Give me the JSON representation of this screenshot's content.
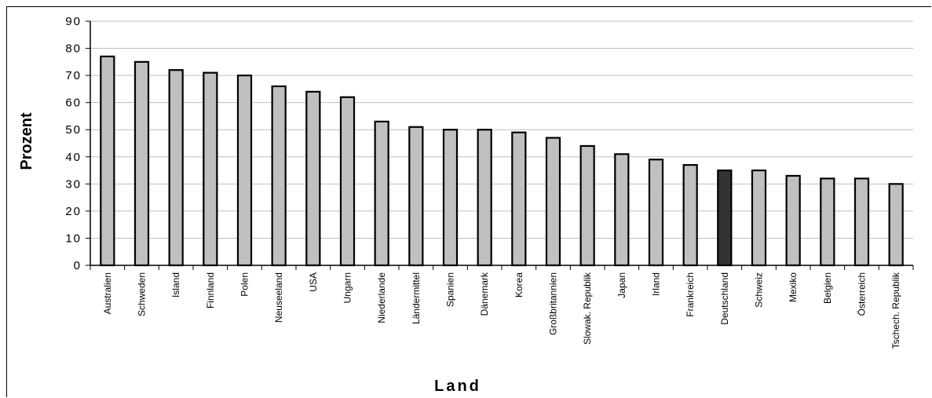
{
  "chart_data": {
    "type": "bar",
    "xlabel": "Land",
    "ylabel": "Prozent",
    "ylim": [
      0,
      90
    ],
    "yticks": [
      0,
      10,
      20,
      30,
      40,
      50,
      60,
      70,
      80,
      90
    ],
    "grid": true,
    "categories": [
      "Australien",
      "Schweden",
      "Island",
      "Finnland",
      "Polen",
      "Neuseeland",
      "USA",
      "Ungarn",
      "Niederlande",
      "Ländermittel",
      "Spanien",
      "Dänemark",
      "Korea",
      "Großbritannien",
      "Slowak. Republik",
      "Japan",
      "Irland",
      "Frankreich",
      "Deutschland",
      "Schweiz",
      "Mexiko",
      "Belgien",
      "Österreich",
      "Tschech. Republik"
    ],
    "values": [
      77,
      75,
      72,
      71,
      70,
      66,
      64,
      62,
      53,
      51,
      50,
      50,
      49,
      47,
      44,
      41,
      39,
      37,
      35,
      35,
      33,
      32,
      32,
      30
    ],
    "highlight_category": "Deutschland",
    "colors": {
      "bar": "#c0c0c0",
      "highlight": "#333333",
      "outline": "#000000",
      "grid": "#bfbfbf"
    }
  }
}
